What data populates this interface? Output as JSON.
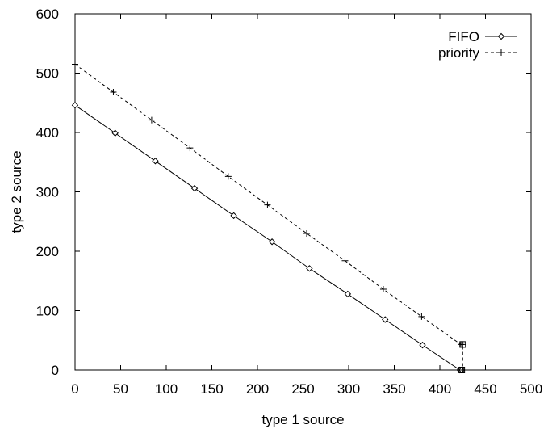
{
  "chart_data": {
    "type": "line",
    "title": "",
    "xlabel": "type 1 source",
    "ylabel": "type 2 source",
    "xlim": [
      0,
      500
    ],
    "ylim": [
      0,
      600
    ],
    "xticks": [
      "0",
      "50",
      "100",
      "150",
      "200",
      "250",
      "300",
      "350",
      "400",
      "450",
      "500"
    ],
    "yticks": [
      "0",
      "100",
      "200",
      "300",
      "400",
      "500",
      "600"
    ],
    "grid": false,
    "legend_position": "top-right",
    "series": [
      {
        "name": "FIFO",
        "line_style": "solid",
        "marker": "diamond",
        "color": "#000000",
        "x": [
          0,
          44,
          88,
          131,
          174,
          216,
          257,
          299,
          340,
          381,
          422,
          424
        ],
        "y": [
          446,
          399,
          352,
          306,
          260,
          216,
          171,
          128,
          85,
          42,
          0,
          0
        ]
      },
      {
        "name": "priority",
        "line_style": "dashed",
        "marker": "plus",
        "color": "#000000",
        "x": [
          0,
          42,
          84,
          126,
          168,
          211,
          254,
          296,
          338,
          380,
          423,
          425,
          425
        ],
        "y": [
          515,
          468,
          421,
          374,
          326,
          278,
          230,
          184,
          136,
          90,
          43,
          43,
          0
        ]
      }
    ],
    "annotations": [
      {
        "shape": "square",
        "x": 425,
        "y": 43
      },
      {
        "shape": "square",
        "x": 424,
        "y": 0
      }
    ]
  }
}
